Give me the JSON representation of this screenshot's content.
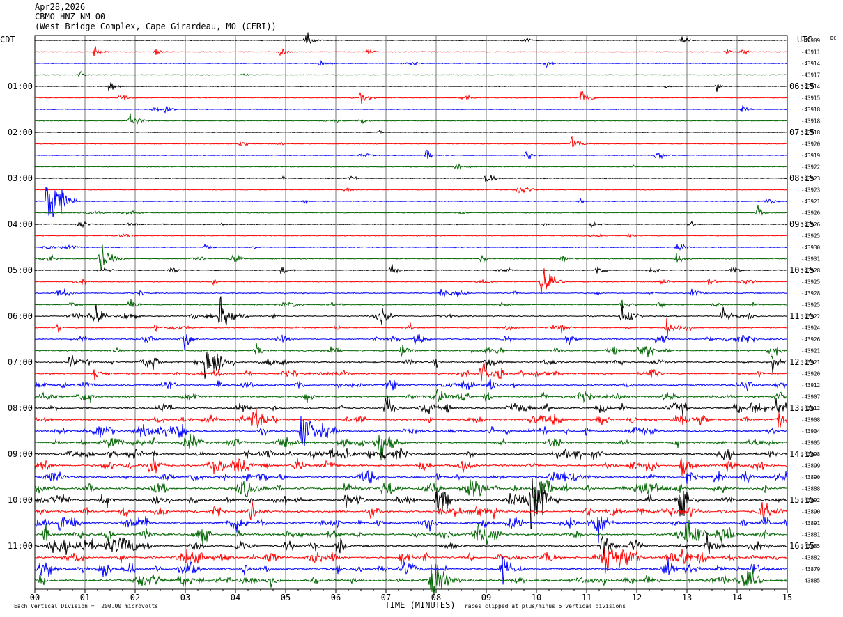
{
  "header": {
    "date": "Apr28,2026",
    "station": "CBMO HNZ NM 00",
    "location": "(West Bridge Complex, Cape Girardeau, MO (CERI))"
  },
  "chart_data": {
    "type": "line",
    "title": "",
    "xlabel": "TIME (MINUTES)",
    "ylabel": "",
    "x_ticks": [
      "00",
      "01",
      "02",
      "03",
      "04",
      "05",
      "06",
      "07",
      "08",
      "09",
      "10",
      "11",
      "12",
      "13",
      "14",
      "15"
    ],
    "xlim": [
      0,
      15
    ],
    "left_tz_label": "CDT",
    "right_tz_label": "UTC",
    "dc_label": "DC",
    "left_time_labels": [
      "01:00",
      "02:00",
      "03:00",
      "04:00",
      "05:00",
      "06:00",
      "07:00",
      "08:00",
      "09:00",
      "10:00",
      "11:00"
    ],
    "right_time_labels": [
      "06:15",
      "07:15",
      "08:15",
      "09:15",
      "10:15",
      "11:15",
      "12:15",
      "13:15",
      "14:15",
      "15:15",
      "16:15"
    ],
    "trace_color_cycle": [
      "#000000",
      "#ff0000",
      "#0000ff",
      "#006400"
    ],
    "trace_dc_offsets": [
      -43909,
      -43911,
      -43914,
      -43917,
      -43914,
      -43915,
      -43918,
      -43918,
      -43918,
      -43920,
      -43919,
      -43922,
      -43923,
      -43923,
      -43921,
      -43926,
      -43926,
      -43925,
      -43930,
      -43931,
      -43928,
      -43925,
      -43928,
      -43925,
      -43922,
      -43924,
      -43926,
      -43921,
      -43921,
      -43920,
      -43912,
      -43907,
      -43912,
      -43908,
      -43904,
      -43905,
      -43898,
      -43899,
      -43890,
      -43888,
      -43892,
      -43890,
      -43891,
      -43881,
      -43885,
      -43882,
      -43879,
      -43885
    ],
    "trace_activity": [
      0.25,
      0.25,
      0.25,
      0.25,
      0.25,
      0.25,
      0.25,
      0.25,
      0.25,
      0.25,
      0.25,
      0.25,
      0.3,
      0.3,
      0.35,
      0.35,
      0.35,
      0.35,
      0.4,
      0.4,
      0.4,
      0.45,
      0.45,
      0.5,
      0.6,
      0.6,
      0.7,
      0.8,
      0.9,
      1.0,
      1.0,
      1.1,
      1.1,
      1.2,
      1.2,
      1.3,
      1.3,
      1.3,
      1.4,
      1.4,
      1.4,
      1.4,
      1.4,
      1.4,
      1.4,
      1.4,
      1.4,
      1.4
    ],
    "events": [
      {
        "trace": 0,
        "minute": 5.4,
        "amp": 12
      },
      {
        "trace": 0,
        "minute": 12.9,
        "amp": 8
      },
      {
        "trace": 1,
        "minute": 1.2,
        "amp": 8
      },
      {
        "trace": 1,
        "minute": 2.4,
        "amp": 6
      },
      {
        "trace": 1,
        "minute": 4.9,
        "amp": 6
      },
      {
        "trace": 1,
        "minute": 6.6,
        "amp": 6
      },
      {
        "trace": 1,
        "minute": 13.8,
        "amp": 5
      },
      {
        "trace": 2,
        "minute": 5.7,
        "amp": 7
      },
      {
        "trace": 2,
        "minute": 10.2,
        "amp": 7
      },
      {
        "trace": 3,
        "minute": 0.9,
        "amp": 5
      },
      {
        "trace": 4,
        "minute": 1.5,
        "amp": 10
      },
      {
        "trace": 4,
        "minute": 13.6,
        "amp": 5
      },
      {
        "trace": 5,
        "minute": 1.7,
        "amp": 9
      },
      {
        "trace": 5,
        "minute": 6.5,
        "amp": 8
      },
      {
        "trace": 5,
        "minute": 10.9,
        "amp": 12
      },
      {
        "trace": 6,
        "minute": 2.6,
        "amp": 7
      },
      {
        "trace": 6,
        "minute": 14.1,
        "amp": 6
      },
      {
        "trace": 7,
        "minute": 1.9,
        "amp": 14
      },
      {
        "trace": 7,
        "minute": 6.5,
        "amp": 5
      },
      {
        "trace": 9,
        "minute": 4.1,
        "amp": 7
      },
      {
        "trace": 9,
        "minute": 10.7,
        "amp": 12
      },
      {
        "trace": 10,
        "minute": 7.8,
        "amp": 9
      },
      {
        "trace": 10,
        "minute": 9.8,
        "amp": 7
      },
      {
        "trace": 10,
        "minute": 12.4,
        "amp": 9
      },
      {
        "trace": 11,
        "minute": 8.4,
        "amp": 8
      },
      {
        "trace": 12,
        "minute": 9.0,
        "amp": 11
      },
      {
        "trace": 13,
        "minute": 6.2,
        "amp": 5
      },
      {
        "trace": 14,
        "minute": 0.25,
        "amp": 60
      },
      {
        "trace": 15,
        "minute": 14.4,
        "amp": 10
      },
      {
        "trace": 16,
        "minute": 0.9,
        "amp": 7
      },
      {
        "trace": 16,
        "minute": 1.9,
        "amp": 6
      },
      {
        "trace": 16,
        "minute": 11.1,
        "amp": 6
      },
      {
        "trace": 18,
        "minute": 3.4,
        "amp": 6
      },
      {
        "trace": 18,
        "minute": 12.8,
        "amp": 7
      },
      {
        "trace": 19,
        "minute": 1.3,
        "amp": 22
      },
      {
        "trace": 19,
        "minute": 8.9,
        "amp": 7
      },
      {
        "trace": 19,
        "minute": 10.5,
        "amp": 8
      },
      {
        "trace": 19,
        "minute": 12.8,
        "amp": 9
      },
      {
        "trace": 20,
        "minute": 4.9,
        "amp": 8
      },
      {
        "trace": 20,
        "minute": 7.1,
        "amp": 9
      },
      {
        "trace": 20,
        "minute": 11.2,
        "amp": 9
      },
      {
        "trace": 20,
        "minute": 13.9,
        "amp": 7
      },
      {
        "trace": 21,
        "minute": 10.1,
        "amp": 22
      },
      {
        "trace": 21,
        "minute": 12.5,
        "amp": 6
      },
      {
        "trace": 22,
        "minute": 0.6,
        "amp": 6
      },
      {
        "trace": 22,
        "minute": 8.1,
        "amp": 6
      },
      {
        "trace": 22,
        "minute": 13.1,
        "amp": 9
      },
      {
        "trace": 23,
        "minute": 1.9,
        "amp": 9
      },
      {
        "trace": 23,
        "minute": 9.3,
        "amp": 7
      },
      {
        "trace": 23,
        "minute": 11.7,
        "amp": 9
      },
      {
        "trace": 23,
        "minute": 14.3,
        "amp": 6
      },
      {
        "trace": 24,
        "minute": 3.7,
        "amp": 28
      },
      {
        "trace": 24,
        "minute": 1.2,
        "amp": 14
      },
      {
        "trace": 24,
        "minute": 6.9,
        "amp": 11
      },
      {
        "trace": 24,
        "minute": 11.7,
        "amp": 20
      },
      {
        "trace": 24,
        "minute": 13.7,
        "amp": 14
      },
      {
        "trace": 25,
        "minute": 12.6,
        "amp": 18
      },
      {
        "trace": 25,
        "minute": 2.4,
        "amp": 6
      },
      {
        "trace": 25,
        "minute": 6.0,
        "amp": 6
      },
      {
        "trace": 26,
        "minute": 3.0,
        "amp": 11
      },
      {
        "trace": 26,
        "minute": 7.6,
        "amp": 12
      },
      {
        "trace": 26,
        "minute": 10.6,
        "amp": 12
      },
      {
        "trace": 26,
        "minute": 12.4,
        "amp": 9
      },
      {
        "trace": 27,
        "minute": 7.3,
        "amp": 14
      },
      {
        "trace": 27,
        "minute": 4.4,
        "amp": 12
      },
      {
        "trace": 27,
        "minute": 14.7,
        "amp": 10
      },
      {
        "trace": 28,
        "minute": 3.4,
        "amp": 34
      },
      {
        "trace": 28,
        "minute": 0.7,
        "amp": 12
      },
      {
        "trace": 28,
        "minute": 9.0,
        "amp": 14
      },
      {
        "trace": 28,
        "minute": 14.7,
        "amp": 12
      },
      {
        "trace": 29,
        "minute": 8.9,
        "amp": 18
      },
      {
        "trace": 29,
        "minute": 1.2,
        "amp": 12
      },
      {
        "trace": 30,
        "minute": 14.2,
        "amp": 10
      },
      {
        "trace": 32,
        "minute": 7.0,
        "amp": 14
      },
      {
        "trace": 32,
        "minute": 14.3,
        "amp": 18
      },
      {
        "trace": 32,
        "minute": 14.8,
        "amp": 18
      },
      {
        "trace": 33,
        "minute": 14.8,
        "amp": 14
      },
      {
        "trace": 34,
        "minute": 5.3,
        "amp": 34
      },
      {
        "trace": 34,
        "minute": 1.2,
        "amp": 14
      },
      {
        "trace": 35,
        "minute": 6.9,
        "amp": 14
      },
      {
        "trace": 36,
        "minute": 11.1,
        "amp": 12
      },
      {
        "trace": 37,
        "minute": 2.3,
        "amp": 14
      },
      {
        "trace": 37,
        "minute": 12.9,
        "amp": 16
      },
      {
        "trace": 38,
        "minute": 13.0,
        "amp": 11
      },
      {
        "trace": 39,
        "minute": 10.0,
        "amp": 28
      },
      {
        "trace": 39,
        "minute": 6.2,
        "amp": 14
      },
      {
        "trace": 40,
        "minute": 9.9,
        "amp": 40
      },
      {
        "trace": 40,
        "minute": 8.0,
        "amp": 18
      },
      {
        "trace": 40,
        "minute": 12.9,
        "amp": 16
      },
      {
        "trace": 40,
        "minute": 6.2,
        "amp": 12
      },
      {
        "trace": 41,
        "minute": 4.3,
        "amp": 14
      },
      {
        "trace": 42,
        "minute": 11.2,
        "amp": 18
      },
      {
        "trace": 42,
        "minute": 0.5,
        "amp": 12
      },
      {
        "trace": 43,
        "minute": 8.8,
        "amp": 26
      },
      {
        "trace": 43,
        "minute": 13.0,
        "amp": 14
      },
      {
        "trace": 44,
        "minute": 4.0,
        "amp": 18
      },
      {
        "trace": 44,
        "minute": 11.3,
        "amp": 18
      },
      {
        "trace": 44,
        "minute": 13.4,
        "amp": 14
      },
      {
        "trace": 45,
        "minute": 11.4,
        "amp": 40
      },
      {
        "trace": 45,
        "minute": 7.3,
        "amp": 16
      },
      {
        "trace": 46,
        "minute": 9.3,
        "amp": 22
      },
      {
        "trace": 46,
        "minute": 14.3,
        "amp": 14
      },
      {
        "trace": 47,
        "minute": 7.9,
        "amp": 36
      },
      {
        "trace": 47,
        "minute": 12.2,
        "amp": 12
      }
    ]
  },
  "footer": {
    "scale_note": "Each Vertical Division =  200.00 microvolts",
    "clip_note": "Traces clipped at plus/minus 5 vertical divisions"
  }
}
